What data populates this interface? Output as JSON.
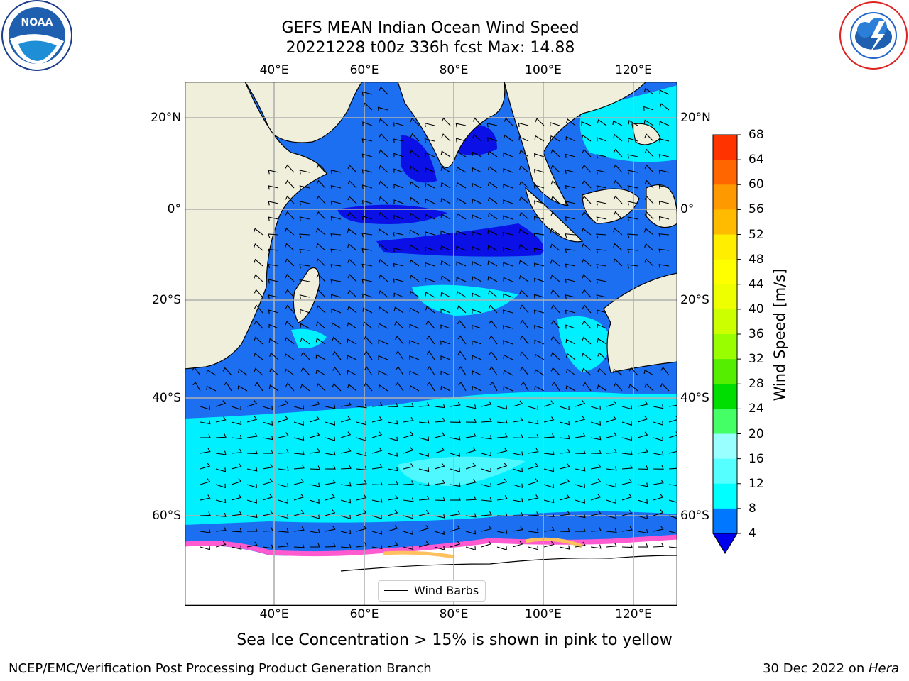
{
  "header": {
    "title_line1": "GEFS MEAN Indian Ocean Wind Speed",
    "title_line2": "20221228 t00z 336h fcst   Max: 14.88"
  },
  "logos": {
    "left_text": "NOAA",
    "left_ring_text": "NATIONAL OCEANIC AND ATMOSPHERIC ADMINISTRATION · U.S. DEPARTMENT OF COMMERCE",
    "right_ring_text": "NATIONAL WEATHER SERVICE"
  },
  "map": {
    "lon_labels": [
      "40°E",
      "60°E",
      "80°E",
      "100°E",
      "120°E"
    ],
    "lat_labels_left": [
      "20°N",
      "0°",
      "20°S",
      "40°S",
      "60°S"
    ],
    "lat_labels_right": [
      "20°N",
      "0°",
      "20°S",
      "40°S",
      "60°S"
    ],
    "legend_label": "Wind Barbs",
    "colors": {
      "land": "#efefdc",
      "ice": "#ffffff",
      "grid": "#b0b0b0"
    }
  },
  "colorbar": {
    "label": "Wind Speed [m/s]",
    "ticks": [
      "68",
      "64",
      "60",
      "56",
      "52",
      "48",
      "44",
      "40",
      "36",
      "32",
      "28",
      "24",
      "20",
      "16",
      "12",
      "8",
      "4"
    ],
    "colors": [
      "#ff0000",
      "#ff3300",
      "#ff6600",
      "#ff9900",
      "#ffbb00",
      "#ffee00",
      "#ffff00",
      "#eeff00",
      "#ccff00",
      "#99ff00",
      "#55ee00",
      "#00dd00",
      "#44ff66",
      "#99ffff",
      "#55ffff",
      "#00ffff",
      "#0077ff"
    ],
    "under_color": "#0000ee"
  },
  "caption": "Sea Ice Concentration > 15% is shown in pink to yellow",
  "footer": {
    "left": "NCEP/EMC/Verification Post Processing Product Generation Branch",
    "right_prefix": "30 Dec 2022 on ",
    "right_machine": "Hera"
  }
}
